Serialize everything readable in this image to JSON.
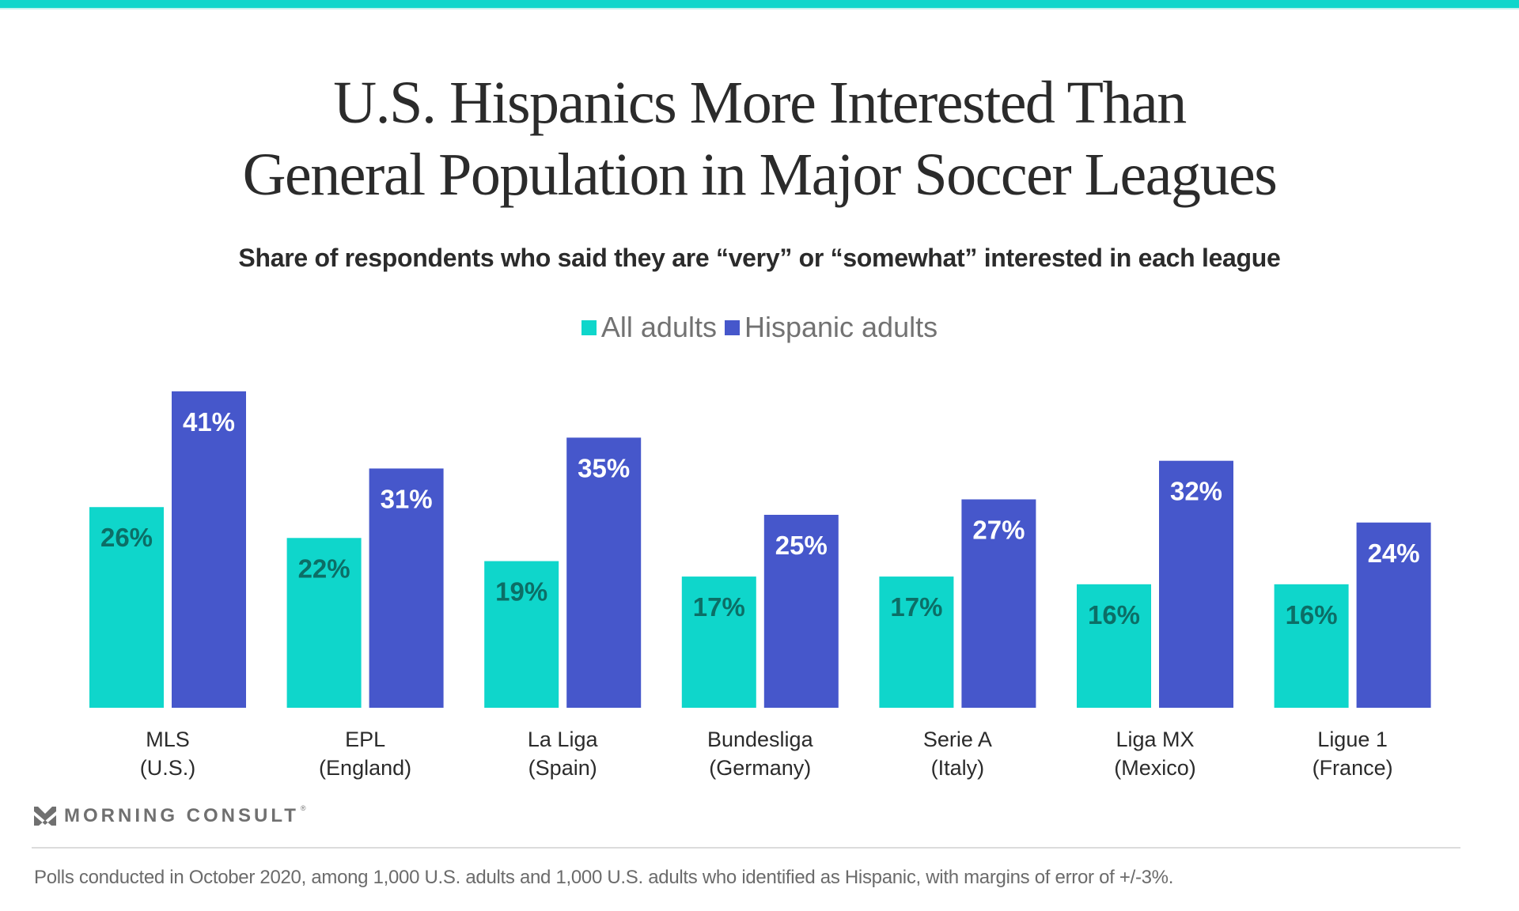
{
  "header": {
    "title_line1": "U.S. Hispanics More Interested Than",
    "title_line2": "General Population in Major Soccer Leagues",
    "subtitle": "Share of respondents who said they are “very” or “somewhat” interested in each league"
  },
  "colors": {
    "accent_bar": "#0fd6cb",
    "all_adults": "#0fd6cb",
    "hispanic_adults": "#4657cb",
    "all_adults_label": "#0c6e66",
    "hispanic_adults_label": "#ffffff"
  },
  "legend": {
    "items": [
      {
        "label": "All adults",
        "color": "#0fd6cb"
      },
      {
        "label": "Hispanic adults",
        "color": "#4657cb"
      }
    ]
  },
  "chart_data": {
    "type": "bar",
    "title": "U.S. Hispanics More Interested Than General Population in Major Soccer Leagues",
    "subtitle": "Share of respondents who said they are “very” or “somewhat” interested in each league",
    "xlabel": "",
    "ylabel": "",
    "ylim": [
      0,
      45
    ],
    "grid": false,
    "legend_position": "top-center",
    "unit": "%",
    "categories": [
      "MLS (U.S.)",
      "EPL (England)",
      "La Liga (Spain)",
      "Bundesliga (Germany)",
      "Serie A (Italy)",
      "Liga MX (Mexico)",
      "Ligue 1 (France)"
    ],
    "category_lines": [
      [
        "MLS",
        "(U.S.)"
      ],
      [
        "EPL",
        "(England)"
      ],
      [
        "La Liga",
        "(Spain)"
      ],
      [
        "Bundesliga",
        "(Germany)"
      ],
      [
        "Serie A",
        "(Italy)"
      ],
      [
        "Liga MX",
        "(Mexico)"
      ],
      [
        "Ligue 1",
        "(France)"
      ]
    ],
    "series": [
      {
        "name": "All adults",
        "values": [
          26,
          22,
          19,
          17,
          17,
          16,
          16
        ]
      },
      {
        "name": "Hispanic adults",
        "values": [
          41,
          31,
          35,
          25,
          27,
          32,
          24
        ]
      }
    ]
  },
  "footer": {
    "logo_text": "MORNING CONSULT",
    "logo_mark": "®",
    "note": "Polls conducted in October 2020, among 1,000 U.S. adults and 1,000 U.S. adults who identified as Hispanic, with margins of error of +/-3%."
  }
}
